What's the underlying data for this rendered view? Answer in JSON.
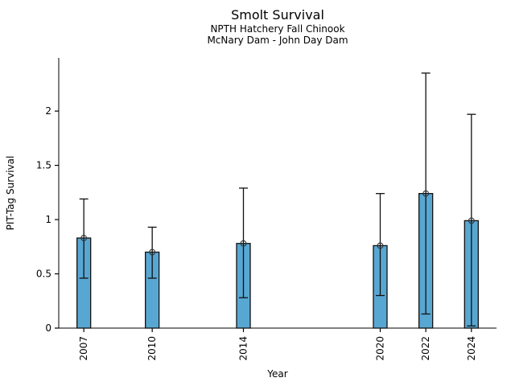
{
  "header": {
    "title": "Smolt Survival",
    "subtitle1": "NPTH Hatchery Fall Chinook",
    "subtitle2": "McNary Dam - John Day Dam"
  },
  "chart_data": {
    "type": "bar",
    "title": "Smolt Survival",
    "subtitle": [
      "NPTH Hatchery Fall Chinook",
      "McNary Dam - John Day Dam"
    ],
    "xlabel": "Year",
    "ylabel": "PIT-Tag Survival",
    "x": [
      2007,
      2010,
      2014,
      2020,
      2022,
      2024
    ],
    "x_tick_labels": [
      "2007",
      "2010",
      "2014",
      "2020",
      "2022",
      "2024"
    ],
    "values": [
      0.83,
      0.7,
      0.78,
      0.76,
      1.24,
      0.99
    ],
    "error_low": [
      0.46,
      0.46,
      0.28,
      0.3,
      0.13,
      0.02
    ],
    "error_high": [
      1.19,
      0.93,
      1.29,
      1.24,
      2.35,
      1.97
    ],
    "yticks": [
      0,
      0.5,
      1,
      1.5,
      2
    ],
    "ytick_labels": [
      "0",
      "0.5",
      "1",
      "1.5",
      "2"
    ],
    "xlim": [
      2005.9,
      2025.1
    ],
    "ylim": [
      0,
      2.49
    ],
    "bar_width_years": 0.6,
    "bar_color": "#58a7d3",
    "edge_color": "#111111",
    "marker": "circle-open",
    "grid": false,
    "legend": null
  }
}
